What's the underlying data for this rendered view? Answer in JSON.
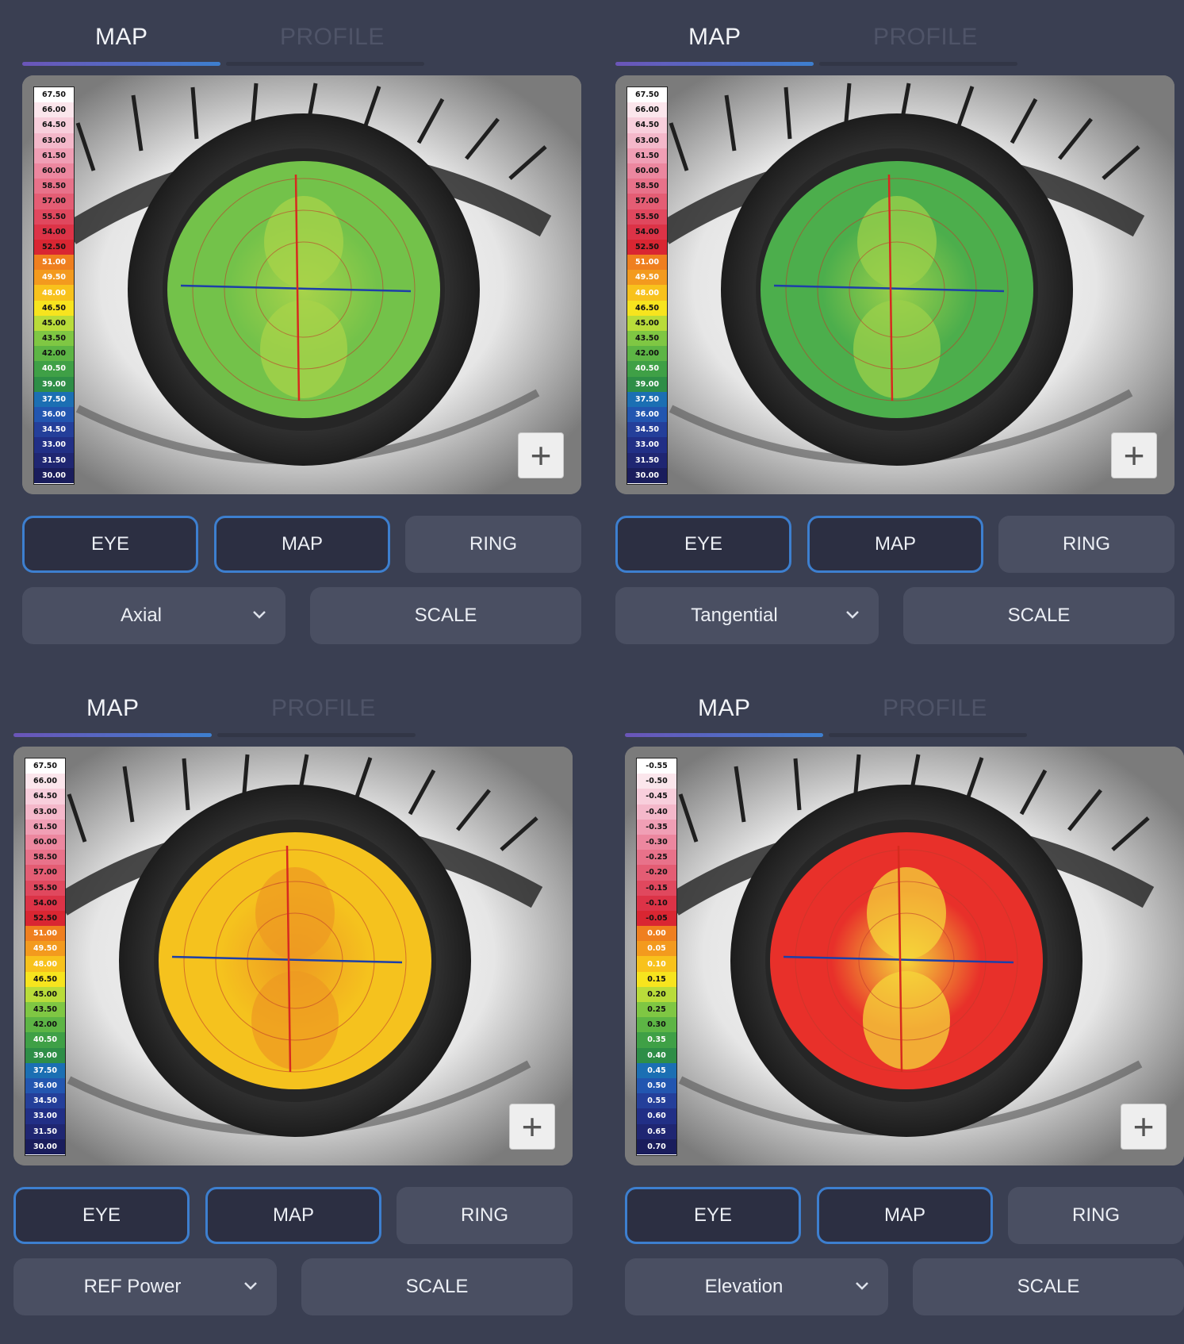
{
  "panels": [
    {
      "tabs": {
        "map": "MAP",
        "profile": "PROFILE"
      },
      "scale": [
        "67.50",
        "66.00",
        "64.50",
        "63.00",
        "61.50",
        "60.00",
        "58.50",
        "57.00",
        "55.50",
        "54.00",
        "52.50",
        "51.00",
        "49.50",
        "48.00",
        "46.50",
        "45.00",
        "43.50",
        "42.00",
        "40.50",
        "39.00",
        "37.50",
        "36.00",
        "34.50",
        "33.00",
        "31.50",
        "30.00"
      ],
      "buttons": {
        "eye": "EYE",
        "map": "MAP",
        "ring": "RING",
        "scale": "SCALE"
      },
      "map_type": "Axial",
      "map_colors": [
        "#73c24a",
        "#a8d34a"
      ]
    },
    {
      "tabs": {
        "map": "MAP",
        "profile": "PROFILE"
      },
      "scale": [
        "67.50",
        "66.00",
        "64.50",
        "63.00",
        "61.50",
        "60.00",
        "58.50",
        "57.00",
        "55.50",
        "54.00",
        "52.50",
        "51.00",
        "49.50",
        "48.00",
        "46.50",
        "45.00",
        "43.50",
        "42.00",
        "40.50",
        "39.00",
        "37.50",
        "36.00",
        "34.50",
        "33.00",
        "31.50",
        "30.00"
      ],
      "buttons": {
        "eye": "EYE",
        "map": "MAP",
        "ring": "RING",
        "scale": "SCALE"
      },
      "map_type": "Tangential",
      "map_colors": [
        "#4cae4c",
        "#9cd04a"
      ]
    },
    {
      "tabs": {
        "map": "MAP",
        "profile": "PROFILE"
      },
      "scale": [
        "67.50",
        "66.00",
        "64.50",
        "63.00",
        "61.50",
        "60.00",
        "58.50",
        "57.00",
        "55.50",
        "54.00",
        "52.50",
        "51.00",
        "49.50",
        "48.00",
        "46.50",
        "45.00",
        "43.50",
        "42.00",
        "40.50",
        "39.00",
        "37.50",
        "36.00",
        "34.50",
        "33.00",
        "31.50",
        "30.00"
      ],
      "buttons": {
        "eye": "EYE",
        "map": "MAP",
        "ring": "RING",
        "scale": "SCALE"
      },
      "map_type": "REF Power",
      "map_colors": [
        "#f5c21e",
        "#ee9a22"
      ]
    },
    {
      "tabs": {
        "map": "MAP",
        "profile": "PROFILE"
      },
      "scale": [
        "-0.55",
        "-0.50",
        "-0.45",
        "-0.40",
        "-0.35",
        "-0.30",
        "-0.25",
        "-0.20",
        "-0.15",
        "-0.10",
        "-0.05",
        "0.00",
        "0.05",
        "0.10",
        "0.15",
        "0.20",
        "0.25",
        "0.30",
        "0.35",
        "0.40",
        "0.45",
        "0.50",
        "0.55",
        "0.60",
        "0.65",
        "0.70"
      ],
      "buttons": {
        "eye": "EYE",
        "map": "MAP",
        "ring": "RING",
        "scale": "SCALE"
      },
      "map_type": "Elevation",
      "map_colors": [
        "#e8302a",
        "#f5d53a"
      ]
    }
  ],
  "scale_palette": [
    "#ffffff",
    "#fbe6ec",
    "#f8cfdc",
    "#f4b8ca",
    "#f09fb5",
    "#ec879f",
    "#e8728a",
    "#e45d74",
    "#e0485e",
    "#dc3347",
    "#d92632",
    "#ef7f1f",
    "#f39a1e",
    "#f8c21c",
    "#f7e41e",
    "#b9dc3a",
    "#7fc743",
    "#5db545",
    "#3fa046",
    "#2e8e47",
    "#1b6fb3",
    "#2256b0",
    "#243f9a",
    "#212f86",
    "#1f2672",
    "#1a1d5c"
  ]
}
